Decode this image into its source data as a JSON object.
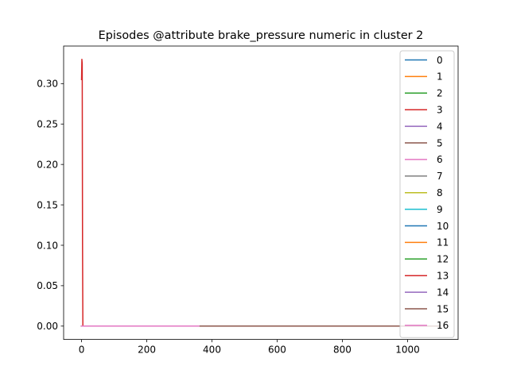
{
  "chart_data": {
    "type": "line",
    "title": "Episodes @attribute brake_pressure numeric in cluster 2",
    "xlabel": "",
    "ylabel": "",
    "xlim": [
      -55,
      1155
    ],
    "ylim": [
      -0.0165,
      0.3465
    ],
    "xticks": [
      0,
      200,
      400,
      600,
      800,
      1000
    ],
    "yticks": [
      0.0,
      0.05,
      0.1,
      0.15,
      0.2,
      0.25,
      0.3
    ],
    "xtick_labels": [
      "0",
      "200",
      "400",
      "600",
      "800",
      "1000"
    ],
    "ytick_labels": [
      "0.00",
      "0.05",
      "0.10",
      "0.15",
      "0.20",
      "0.25",
      "0.30"
    ],
    "grid": false,
    "legend_position": "upper-right",
    "series": [
      {
        "name": "0",
        "color": "#1f77b4",
        "x": [
          0,
          5,
          1100
        ],
        "y": [
          0,
          0,
          0
        ]
      },
      {
        "name": "1",
        "color": "#ff7f0e",
        "x": [
          0,
          5,
          1100
        ],
        "y": [
          0,
          0,
          0
        ]
      },
      {
        "name": "2",
        "color": "#2ca02c",
        "x": [
          0,
          5,
          1100
        ],
        "y": [
          0,
          0,
          0
        ]
      },
      {
        "name": "3",
        "color": "#d62728",
        "x": [
          0,
          1,
          2,
          3,
          4,
          5,
          1100
        ],
        "y": [
          0.305,
          0.33,
          0.325,
          0.1,
          0.0,
          0.0,
          0.0
        ]
      },
      {
        "name": "4",
        "color": "#9467bd",
        "x": [
          0,
          5,
          1100
        ],
        "y": [
          0,
          0,
          0
        ]
      },
      {
        "name": "5",
        "color": "#8c564b",
        "x": [
          360,
          1100
        ],
        "y": [
          0,
          0
        ]
      },
      {
        "name": "6",
        "color": "#e377c2",
        "x": [
          0,
          360
        ],
        "y": [
          0,
          0
        ]
      },
      {
        "name": "7",
        "color": "#7f7f7f",
        "x": [
          0,
          5,
          1100
        ],
        "y": [
          0,
          0,
          0
        ]
      },
      {
        "name": "8",
        "color": "#bcbd22",
        "x": [
          0,
          5,
          1100
        ],
        "y": [
          0,
          0,
          0
        ]
      },
      {
        "name": "9",
        "color": "#17becf",
        "x": [
          0,
          5,
          1100
        ],
        "y": [
          0,
          0,
          0
        ]
      },
      {
        "name": "10",
        "color": "#1f77b4",
        "x": [
          0,
          5,
          1100
        ],
        "y": [
          0,
          0,
          0
        ]
      },
      {
        "name": "11",
        "color": "#ff7f0e",
        "x": [
          0,
          5,
          1100
        ],
        "y": [
          0,
          0,
          0
        ]
      },
      {
        "name": "12",
        "color": "#2ca02c",
        "x": [
          0,
          5,
          1100
        ],
        "y": [
          0,
          0,
          0
        ]
      },
      {
        "name": "13",
        "color": "#d62728",
        "x": [
          0,
          5,
          1100
        ],
        "y": [
          0,
          0,
          0
        ]
      },
      {
        "name": "14",
        "color": "#9467bd",
        "x": [
          0,
          5,
          1100
        ],
        "y": [
          0,
          0,
          0
        ]
      },
      {
        "name": "15",
        "color": "#8c564b",
        "x": [
          360,
          1100
        ],
        "y": [
          0,
          0
        ]
      },
      {
        "name": "16",
        "color": "#e377c2",
        "x": [
          0,
          360
        ],
        "y": [
          0,
          0
        ]
      }
    ]
  }
}
